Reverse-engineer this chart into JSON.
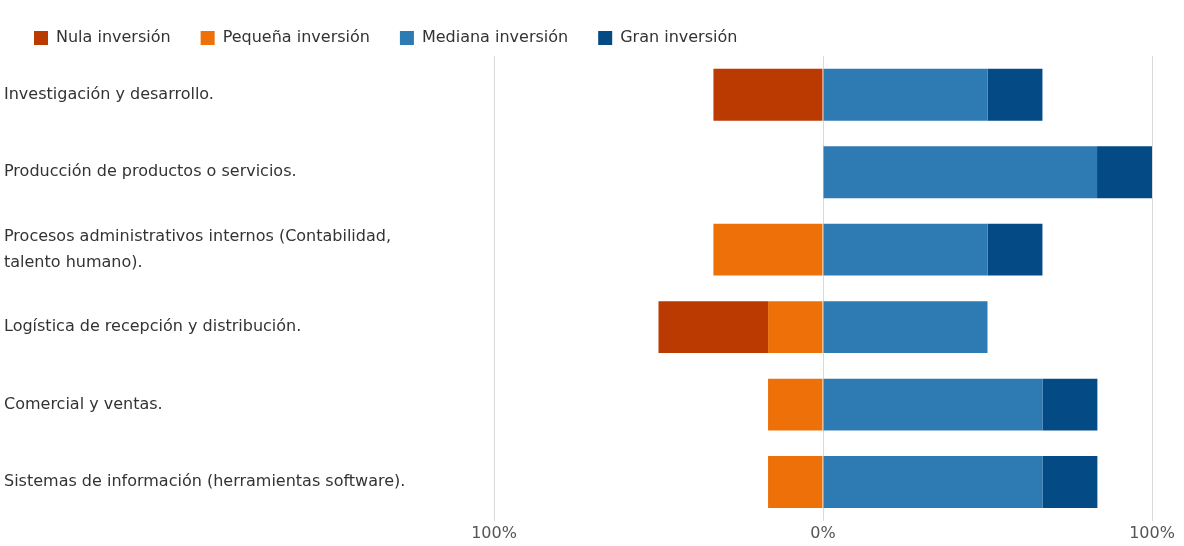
{
  "chart_data": {
    "type": "bar",
    "orientation": "horizontal",
    "stacked": true,
    "categories": [
      "Investigación y desarrollo.",
      "Producción de productos o servicios.",
      "Procesos administrativos internos (Contabilidad, talento humano).",
      "Logística de recepción y distribución.",
      "Comercial y ventas.",
      "Sistemas de información (herramientas software)."
    ],
    "series": [
      {
        "name": "Nula inversión",
        "color": "#bb3a02",
        "values": [
          -33.3,
          null,
          null,
          -33.3,
          null,
          null
        ]
      },
      {
        "name": "Pequeña inversión",
        "color": "#ed7008",
        "values": [
          null,
          null,
          -33.3,
          -16.7,
          -16.7,
          -16.7
        ]
      },
      {
        "name": "Mediana inversión",
        "color": "#2e7ab3",
        "values": [
          50,
          83.3,
          50,
          50,
          66.7,
          66.7
        ]
      },
      {
        "name": "Gran inversión",
        "color": "#044a85",
        "values": [
          16.7,
          16.7,
          16.7,
          null,
          16.7,
          16.7
        ]
      }
    ],
    "xlim": [
      -100,
      100
    ],
    "xticks": [
      {
        "value": -100,
        "label": "100%"
      },
      {
        "value": 0,
        "label": "0%"
      },
      {
        "value": 100,
        "label": "100%"
      }
    ],
    "grid": "x",
    "legend": "top left"
  }
}
